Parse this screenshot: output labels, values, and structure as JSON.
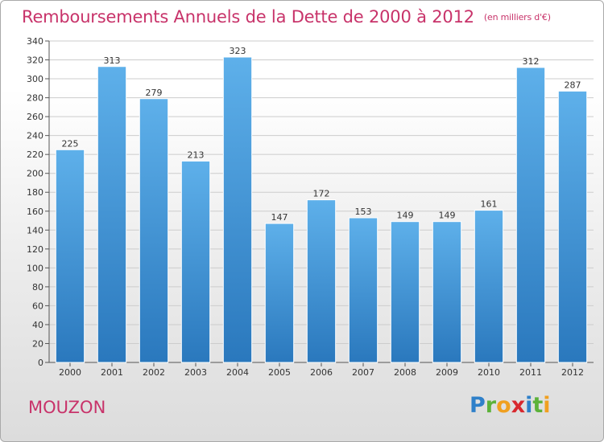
{
  "header": {
    "title": "Remboursements Annuels de la Dette de 2000 à 2012",
    "subtitle": "(en milliers d'€)"
  },
  "footer": {
    "commune": "MOUZON",
    "logo_letters": [
      "P",
      "r",
      "o",
      "x",
      "i",
      "t",
      "i"
    ]
  },
  "colors": {
    "title": "#c8336a",
    "bar_top": "#5eb0ea",
    "bar_bottom": "#2a78bd",
    "gridline": "#cccccc",
    "axis": "#555555"
  },
  "chart_data": {
    "type": "bar",
    "title": "Remboursements Annuels de la Dette de 2000 à 2012",
    "subtitle": "(en milliers d'€)",
    "xlabel": "",
    "ylabel": "",
    "categories": [
      "2000",
      "2001",
      "2002",
      "2003",
      "2004",
      "2005",
      "2006",
      "2007",
      "2008",
      "2009",
      "2010",
      "2011",
      "2012"
    ],
    "values": [
      225,
      313,
      279,
      213,
      323,
      147,
      172,
      153,
      149,
      149,
      161,
      312,
      287
    ],
    "ylim": [
      0,
      340
    ],
    "yticks": [
      0,
      20,
      40,
      60,
      80,
      100,
      120,
      140,
      160,
      180,
      200,
      220,
      240,
      260,
      280,
      300,
      320,
      340
    ],
    "grid": "horizontal",
    "legend": "none",
    "data_labels": true
  }
}
